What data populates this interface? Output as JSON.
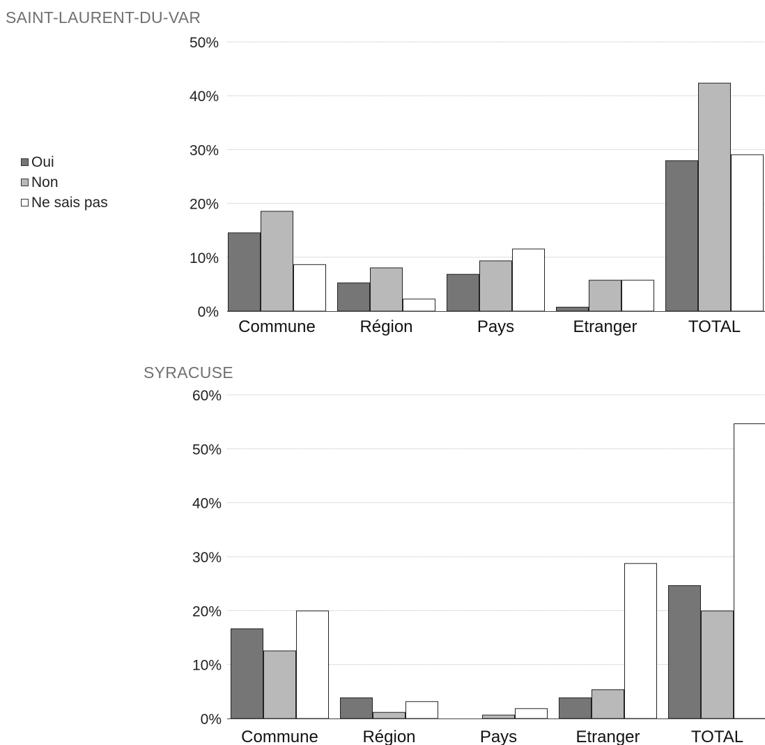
{
  "legend": {
    "items": [
      {
        "label": "Oui",
        "color": "#767676"
      },
      {
        "label": "Non",
        "color": "#b9b9b9"
      },
      {
        "label": "Ne sais pas",
        "color": "#ffffff"
      }
    ]
  },
  "chart_data": [
    {
      "type": "bar",
      "title": "SAINT-LAURENT-DU-VAR",
      "categories": [
        "Commune",
        "Région",
        "Pays",
        "Etranger",
        "TOTAL"
      ],
      "series": [
        {
          "name": "Oui",
          "color": "#767676",
          "values": [
            14.6,
            5.3,
            6.9,
            0.8,
            28.0
          ]
        },
        {
          "name": "Non",
          "color": "#b9b9b9",
          "values": [
            18.6,
            8.1,
            9.4,
            5.8,
            42.4
          ]
        },
        {
          "name": "Ne sais pas",
          "color": "#ffffff",
          "values": [
            8.7,
            2.3,
            11.6,
            5.8,
            29.1
          ]
        }
      ],
      "ylim": [
        0,
        50
      ],
      "yticks": [
        0,
        10,
        20,
        30,
        40,
        50
      ],
      "ytick_labels": [
        "0%",
        "10%",
        "20%",
        "30%",
        "40%",
        "50%"
      ],
      "grid": true,
      "legend_position": "left"
    },
    {
      "type": "bar",
      "title": "SYRACUSE",
      "categories": [
        "Commune",
        "Région",
        "Pays",
        "Etranger",
        "TOTAL"
      ],
      "series": [
        {
          "name": "Oui",
          "color": "#767676",
          "values": [
            16.7,
            3.9,
            0.0,
            3.9,
            24.7
          ]
        },
        {
          "name": "Non",
          "color": "#b9b9b9",
          "values": [
            12.6,
            1.2,
            0.7,
            5.4,
            20.0
          ]
        },
        {
          "name": "Ne sais pas",
          "color": "#ffffff",
          "values": [
            20.0,
            3.2,
            1.9,
            28.8,
            54.7
          ]
        }
      ],
      "ylim": [
        0,
        60
      ],
      "yticks": [
        0,
        10,
        20,
        30,
        40,
        50,
        60
      ],
      "ytick_labels": [
        "0%",
        "10%",
        "20%",
        "30%",
        "40%",
        "50%",
        "60%"
      ],
      "grid": true,
      "legend_position": "left"
    }
  ]
}
